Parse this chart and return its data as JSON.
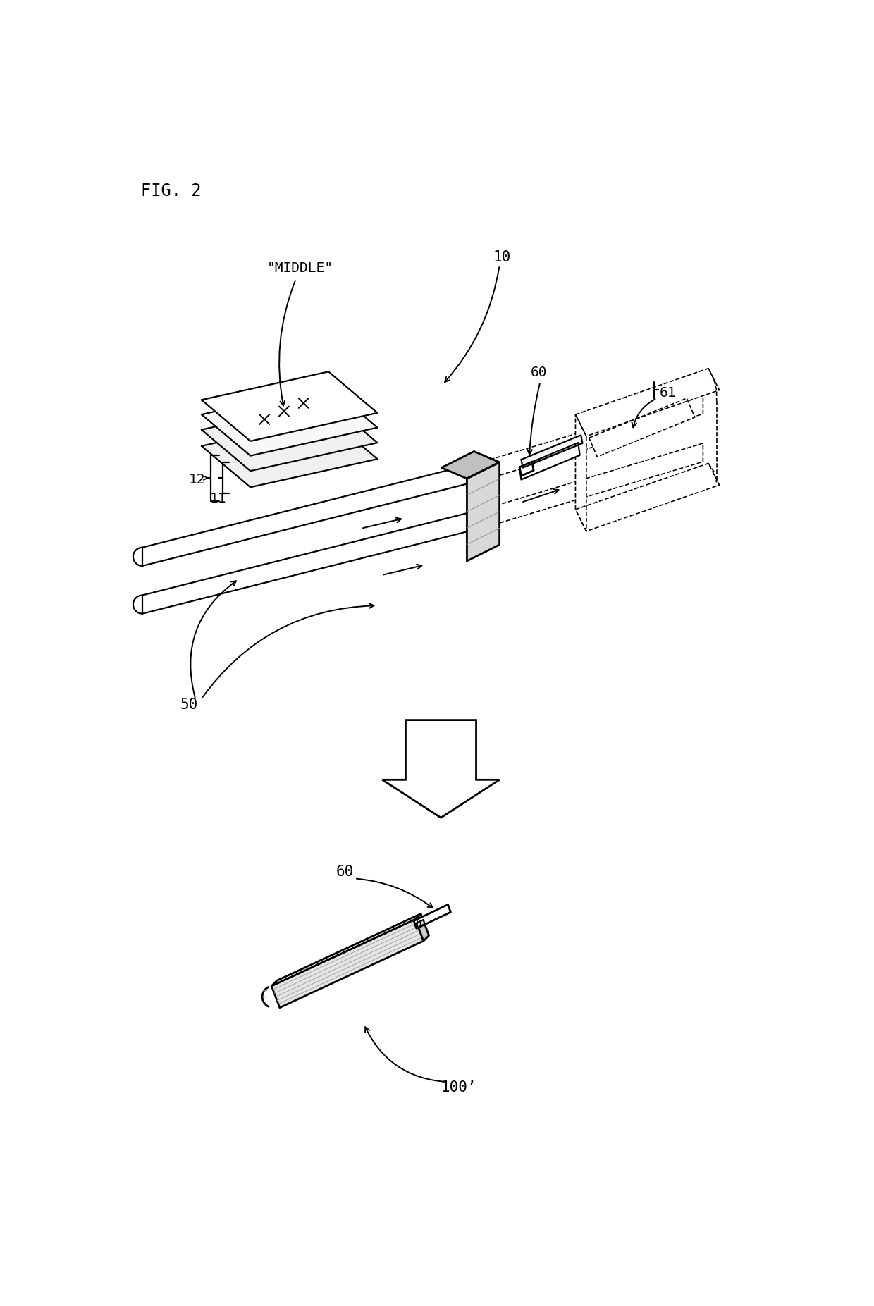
{
  "background_color": "#ffffff",
  "line_color": "#000000",
  "fig_label": "FIG. 2",
  "labels": {
    "middle": "\"MIDDLE\"",
    "10": "10",
    "11": "11",
    "12": "12",
    "50": "50",
    "60_top": "60",
    "61": "61",
    "60_bottom": "60",
    "100prime": "100’"
  },
  "lw": 1.6,
  "lw_thick": 2.0,
  "lw_dashed": 1.2
}
